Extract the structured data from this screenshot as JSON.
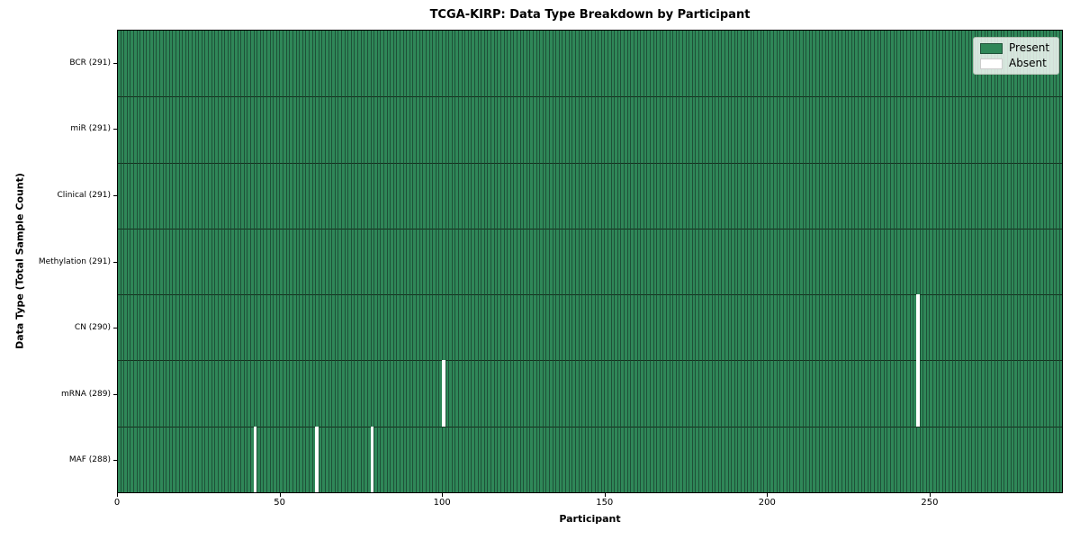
{
  "chart_data": {
    "type": "heatmap",
    "title": "TCGA-KIRP: Data Type Breakdown by Participant",
    "xlabel": "Participant",
    "ylabel": "Data Type (Total Sample Count)",
    "n_participants": 291,
    "xlim": [
      0,
      291
    ],
    "x_ticks": [
      0,
      50,
      100,
      150,
      200,
      250
    ],
    "grid": false,
    "legend_position": "upper right",
    "legend": [
      {
        "label": "Present",
        "color": "#2f8758",
        "border": "#1e5138"
      },
      {
        "label": "Absent",
        "color": "#ffffff",
        "border": "#cccccc"
      }
    ],
    "rows": [
      {
        "label": "BCR (291)",
        "data_type": "BCR",
        "present_count": 291,
        "absent_participants": []
      },
      {
        "label": "miR (291)",
        "data_type": "miR",
        "present_count": 291,
        "absent_participants": []
      },
      {
        "label": "Clinical (291)",
        "data_type": "Clinical",
        "present_count": 291,
        "absent_participants": []
      },
      {
        "label": "Methylation (291)",
        "data_type": "Methylation",
        "present_count": 291,
        "absent_participants": []
      },
      {
        "label": "CN (290)",
        "data_type": "CN",
        "present_count": 290,
        "absent_participants": [
          246
        ]
      },
      {
        "label": "mRNA (289)",
        "data_type": "mRNA",
        "present_count": 289,
        "absent_participants": [
          100,
          246
        ]
      },
      {
        "label": "MAF (288)",
        "data_type": "MAF",
        "present_count": 288,
        "absent_participants": [
          42,
          61,
          78
        ]
      }
    ],
    "colors": {
      "present": "#2f8758",
      "absent": "#ffffff",
      "cell_edge": "#1e5138",
      "row_separator": "#14301e",
      "spine": "#000000"
    }
  }
}
